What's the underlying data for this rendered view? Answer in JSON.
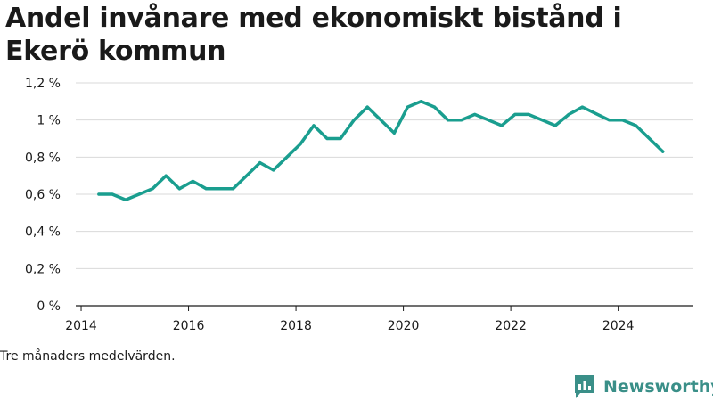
{
  "chart_data": {
    "type": "line",
    "title": "Andel invånare med ekonomiskt bistånd i Ekerö kommun",
    "xlabel": "",
    "ylabel": "",
    "xlim": [
      2013.9,
      2025.4
    ],
    "ylim": [
      0,
      1.2
    ],
    "x_ticks": [
      2014,
      2016,
      2018,
      2020,
      2022,
      2024
    ],
    "y_ticks": [
      0,
      0.2,
      0.4,
      0.6,
      0.8,
      1.0,
      1.2
    ],
    "y_tick_labels": [
      "0 %",
      "0,2 %",
      "0,4 %",
      "0,6 %",
      "0,8 %",
      "1 %",
      "1,2 %"
    ],
    "grid": true,
    "series": [
      {
        "color": "#1a9e8f",
        "points": [
          {
            "x": 2014.33,
            "y": 0.6
          },
          {
            "x": 2014.58,
            "y": 0.6
          },
          {
            "x": 2014.83,
            "y": 0.57
          },
          {
            "x": 2015.08,
            "y": 0.6
          },
          {
            "x": 2015.33,
            "y": 0.63
          },
          {
            "x": 2015.58,
            "y": 0.7
          },
          {
            "x": 2015.83,
            "y": 0.63
          },
          {
            "x": 2016.08,
            "y": 0.67
          },
          {
            "x": 2016.33,
            "y": 0.63
          },
          {
            "x": 2016.83,
            "y": 0.63
          },
          {
            "x": 2017.33,
            "y": 0.77
          },
          {
            "x": 2017.58,
            "y": 0.73
          },
          {
            "x": 2018.08,
            "y": 0.87
          },
          {
            "x": 2018.33,
            "y": 0.97
          },
          {
            "x": 2018.58,
            "y": 0.9
          },
          {
            "x": 2018.83,
            "y": 0.9
          },
          {
            "x": 2019.08,
            "y": 1.0
          },
          {
            "x": 2019.33,
            "y": 1.07
          },
          {
            "x": 2019.83,
            "y": 0.93
          },
          {
            "x": 2020.08,
            "y": 1.07
          },
          {
            "x": 2020.33,
            "y": 1.1
          },
          {
            "x": 2020.58,
            "y": 1.07
          },
          {
            "x": 2020.83,
            "y": 1.0
          },
          {
            "x": 2021.08,
            "y": 1.0
          },
          {
            "x": 2021.33,
            "y": 1.03
          },
          {
            "x": 2021.83,
            "y": 0.97
          },
          {
            "x": 2022.08,
            "y": 1.03
          },
          {
            "x": 2022.33,
            "y": 1.03
          },
          {
            "x": 2022.83,
            "y": 0.97
          },
          {
            "x": 2023.08,
            "y": 1.03
          },
          {
            "x": 2023.33,
            "y": 1.07
          },
          {
            "x": 2023.83,
            "y": 1.0
          },
          {
            "x": 2024.08,
            "y": 1.0
          },
          {
            "x": 2024.33,
            "y": 0.97
          },
          {
            "x": 2024.83,
            "y": 0.83
          }
        ]
      }
    ]
  },
  "footnote": "Tre månaders medelvärden.",
  "brand": {
    "name": "Newsworthy",
    "logo_icon": "newsworthy-logo-icon",
    "color": "#3a8f88"
  },
  "colors": {
    "line": "#1a9e8f",
    "grid": "#d9d9d9",
    "axis": "#1a1a1a"
  }
}
